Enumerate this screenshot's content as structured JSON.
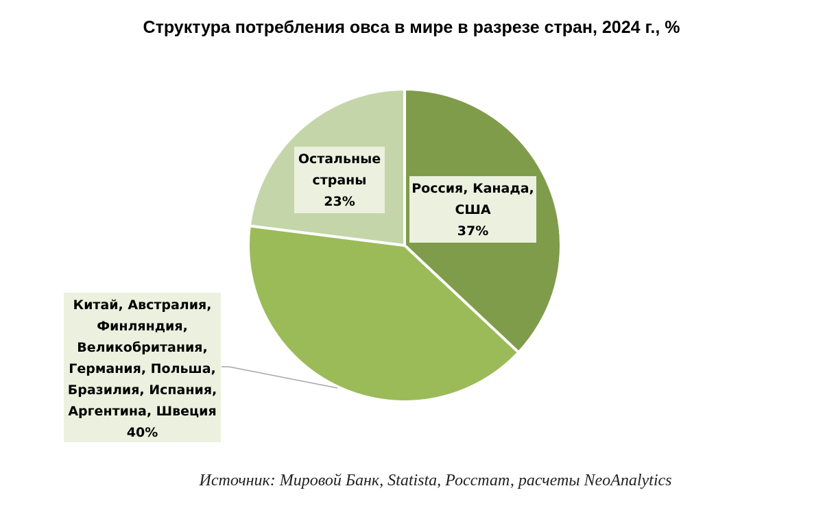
{
  "chart_data": {
    "type": "pie",
    "title": "Структура потребления овса в мире в разрезе стран, 2024 г., %",
    "slices": [
      {
        "label_lines": [
          "Россия, Канада,",
          "США"
        ],
        "value": 37,
        "value_label": "37%",
        "color": "#7f9c4b"
      },
      {
        "label_lines": [
          "Китай, Австралия,",
          "Финляндия,",
          "Великобритания,",
          "Германия, Польша,",
          "Бразилия, Испания,",
          "Аргентина, Швеция"
        ],
        "value": 40,
        "value_label": "40%",
        "color": "#9bbb59"
      },
      {
        "label_lines": [
          "Остальные",
          "страны"
        ],
        "value": 23,
        "value_label": "23%",
        "color": "#c4d6a9"
      }
    ],
    "start_angle_deg": 0,
    "direction": "clockwise",
    "label_box_color": "#ebf1de",
    "leader_line_color": "#a6a6a6"
  },
  "source": "Источник: Мировой Банк, Statista, Росстат, расчеты NeoAnalytics"
}
